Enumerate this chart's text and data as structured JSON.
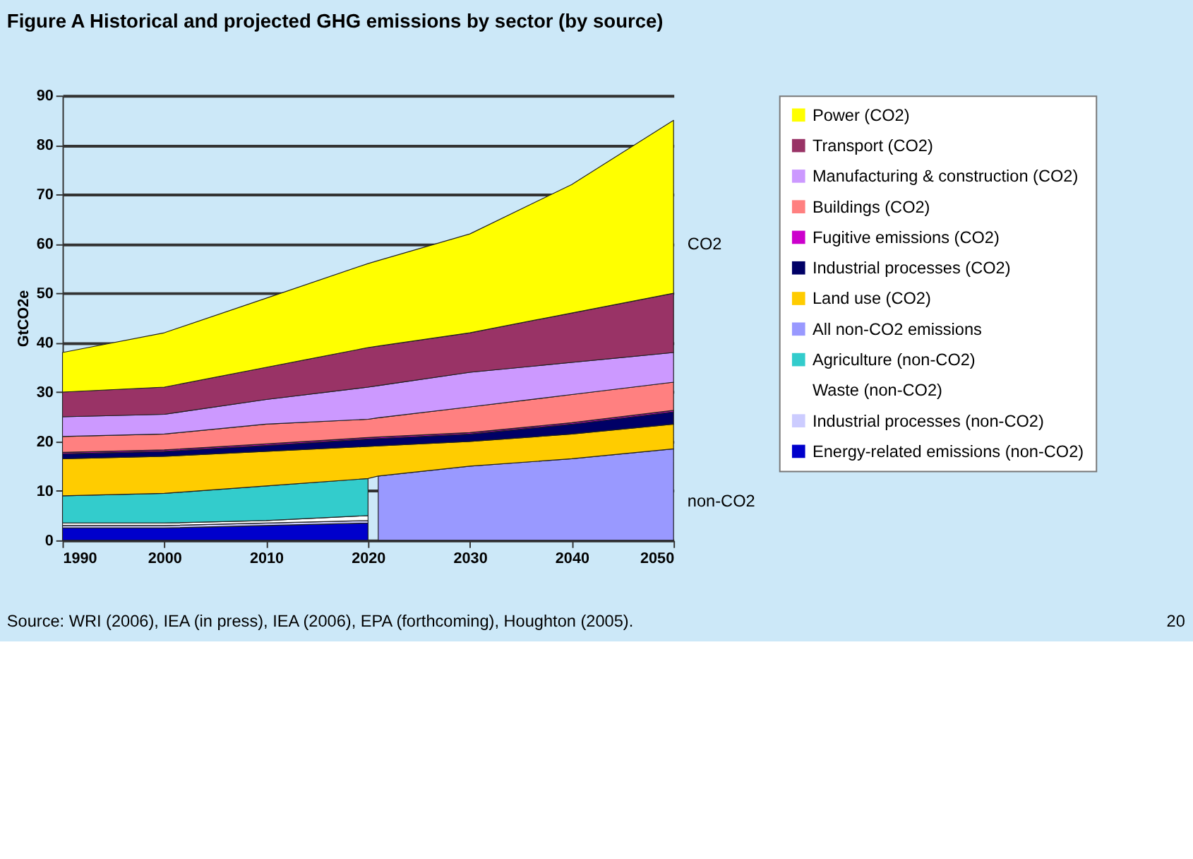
{
  "chart_data": {
    "type": "area",
    "title": "Figure A  Historical and projected GHG emissions by sector (by source)",
    "ylabel": "GtCO2e",
    "stacked": true,
    "x": [
      1990,
      2000,
      2010,
      2020,
      2021,
      2030,
      2040,
      2050
    ],
    "series": [
      {
        "name": "Energy-related emissions (non-CO2)",
        "color": "#0000cc",
        "values": [
          2.5,
          2.5,
          3,
          3.5,
          null,
          null,
          null,
          null
        ]
      },
      {
        "name": "Industrial processes (non-CO2)",
        "color": "#ccccff",
        "values": [
          0.5,
          0.5,
          0.5,
          0.5,
          null,
          null,
          null,
          null
        ]
      },
      {
        "name": "Waste (non-CO2)",
        "color": "#ffffff",
        "values": [
          0.5,
          0.5,
          0.5,
          1,
          null,
          null,
          null,
          null
        ]
      },
      {
        "name": "Agriculture (non-CO2)",
        "color": "#33cccc",
        "values": [
          5.5,
          6,
          7,
          7.5,
          null,
          null,
          null,
          null
        ]
      },
      {
        "name": "All non-CO2 emissions",
        "color": "#9999ff",
        "values": [
          null,
          null,
          null,
          null,
          13,
          15,
          16.5,
          18.5
        ]
      },
      {
        "name": "Land use (CO2)",
        "color": "#ffcc00",
        "values": [
          7.5,
          7.5,
          7,
          6.5,
          6.1,
          5,
          5,
          5
        ]
      },
      {
        "name": "Industrial processes (CO2)",
        "color": "#000066",
        "values": [
          1,
          1,
          1.2,
          1.5,
          1.5,
          1.5,
          2,
          2.5
        ]
      },
      {
        "name": "Fugitive emissions (CO2)",
        "color": "#cc00cc",
        "values": [
          0.3,
          0.3,
          0.3,
          0.3,
          0.3,
          0.3,
          0.3,
          0.3
        ]
      },
      {
        "name": "Buildings (CO2)",
        "color": "#ff8080",
        "values": [
          3.2,
          3.2,
          4,
          3.7,
          3.9,
          5.2,
          5.7,
          5.7
        ]
      },
      {
        "name": "Manufacturing & construction (CO2)",
        "color": "#cc99ff",
        "values": [
          4,
          4,
          5,
          6.5,
          6.5,
          7,
          6.5,
          6
        ]
      },
      {
        "name": "Transport (CO2)",
        "color": "#993366",
        "values": [
          5,
          5.5,
          6.5,
          8,
          8,
          8,
          10,
          12
        ]
      },
      {
        "name": "Power (CO2)",
        "color": "#ffff00",
        "values": [
          8,
          11,
          14,
          17,
          17.3,
          20,
          26,
          35
        ]
      }
    ],
    "xlim": [
      1990,
      2050
    ],
    "xticks": [
      1990,
      2000,
      2010,
      2020,
      2030,
      2040,
      2050
    ],
    "ylim": [
      0,
      90
    ],
    "yticks": [
      0,
      10,
      20,
      30,
      40,
      50,
      60,
      70,
      80,
      90
    ],
    "grid": "y",
    "legend": "right",
    "annotations": [
      "Source: WRI (2006), IEA (in press), IEA (2006), EPA (forthcoming), Houghton (2005).",
      "CO2",
      "non-CO2",
      "20"
    ]
  }
}
